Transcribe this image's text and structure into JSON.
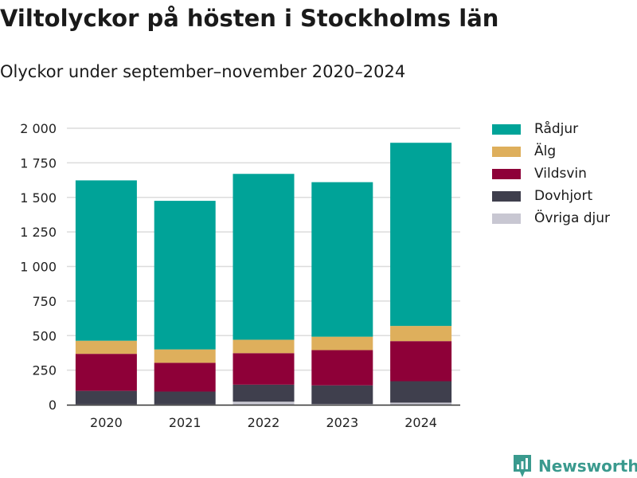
{
  "header": {
    "title": "Viltolyckor på hösten i Stockholms län",
    "subtitle": "Olyckor under september–november 2020–2024"
  },
  "chart_data": {
    "type": "bar",
    "stacked": true,
    "categories": [
      "2020",
      "2021",
      "2022",
      "2023",
      "2024"
    ],
    "series": [
      {
        "name": "Övriga djur",
        "color": "#c8c7d2",
        "values": [
          3,
          3,
          22,
          5,
          15
        ]
      },
      {
        "name": "Dovhjort",
        "color": "#3f3f4d",
        "values": [
          97,
          92,
          123,
          135,
          155
        ]
      },
      {
        "name": "Vildsvin",
        "color": "#8e0038",
        "values": [
          268,
          208,
          228,
          255,
          290
        ]
      },
      {
        "name": "Älg",
        "color": "#deaf5c",
        "values": [
          95,
          97,
          97,
          97,
          110
        ]
      },
      {
        "name": "Rådjur",
        "color": "#00a398",
        "values": [
          1160,
          1075,
          1200,
          1118,
          1325
        ]
      }
    ],
    "ylim": [
      0,
      2000
    ],
    "yticks": [
      0,
      250,
      500,
      750,
      1000,
      1250,
      1500,
      1750,
      2000
    ],
    "ytick_labels": [
      "0",
      "250",
      "500",
      "750",
      "1 000",
      "1 250",
      "1 500",
      "1 750",
      "2 000"
    ],
    "grid": true,
    "legend_position": "right"
  },
  "legend": {
    "items": [
      {
        "label": "Rådjur",
        "color": "#00a398"
      },
      {
        "label": "Älg",
        "color": "#deaf5c"
      },
      {
        "label": "Vildsvin",
        "color": "#8e0038"
      },
      {
        "label": "Dovhjort",
        "color": "#3f3f4d"
      },
      {
        "label": "Övriga djur",
        "color": "#c8c7d2"
      }
    ]
  },
  "brand": {
    "name": "Newsworthy",
    "color": "#3a9a8e"
  }
}
